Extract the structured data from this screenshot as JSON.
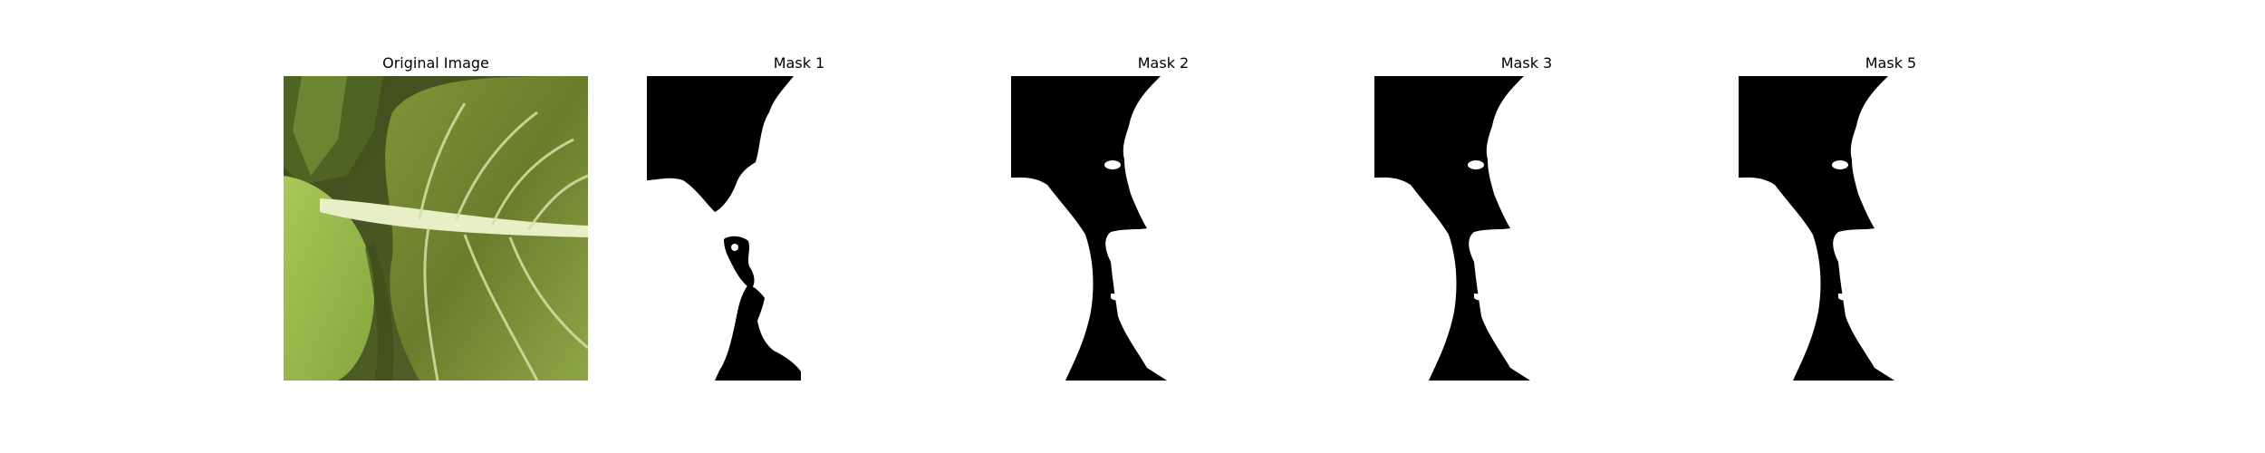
{
  "panels": [
    {
      "title": "Original Image"
    },
    {
      "title": "Mask 1"
    },
    {
      "title": "Mask 2"
    },
    {
      "title": "Mask 3"
    },
    {
      "title": "Mask 5"
    }
  ],
  "colors": {
    "background": "#ffffff",
    "mask_foreground": "#ffffff",
    "mask_background": "#000000",
    "leaf_dark": "#6e7f2e",
    "leaf_light": "#a9c45a",
    "leaf_vein": "#e9f0c8",
    "shadow": "#2f3a14"
  }
}
